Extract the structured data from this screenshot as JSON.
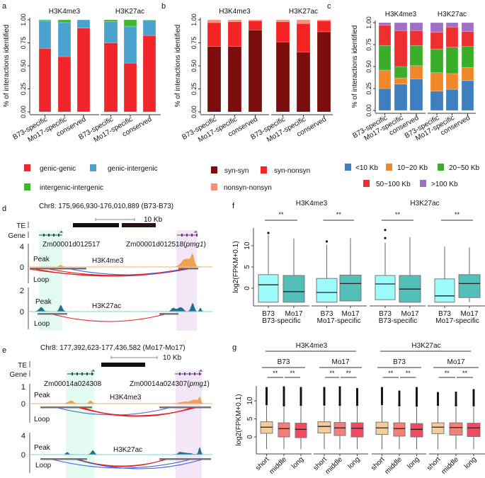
{
  "panels": {
    "a": "a",
    "b": "b",
    "c": "c",
    "d": "d",
    "e": "e",
    "f": "f",
    "g": "g"
  },
  "chart_data": [
    {
      "panel": "a",
      "type": "bar",
      "stacked": true,
      "ylabel": "% of interactions identified",
      "ylim": [
        0,
        1
      ],
      "yticks": [
        "0.00",
        "0.25",
        "0.50",
        "0.75",
        "1.00"
      ],
      "groups": [
        "H3K4me3",
        "H3K27ac"
      ],
      "categories": [
        "B73-specific",
        "Mo17-specific",
        "conserved"
      ],
      "series": [
        {
          "name": "genic-genic",
          "color": "#f0262a",
          "values": [
            [
              0.69,
              0.6,
              0.91
            ],
            [
              0.75,
              0.53,
              0.83
            ]
          ]
        },
        {
          "name": "genic-intergenic",
          "color": "#4aa3cf",
          "values": [
            [
              0.3,
              0.37,
              0.09
            ],
            [
              0.23,
              0.4,
              0.165
            ]
          ]
        },
        {
          "name": "intergenic-intergenic",
          "color": "#3db52e",
          "values": [
            [
              0.01,
              0.03,
              0.0
            ],
            [
              0.02,
              0.07,
              0.005
            ]
          ]
        }
      ],
      "legend": "bottom"
    },
    {
      "panel": "b",
      "type": "bar",
      "stacked": true,
      "ylabel": "% of interactions identified",
      "ylim": [
        0,
        1
      ],
      "yticks": [
        "0.00",
        "0.25",
        "0.50",
        "0.75",
        "1.00"
      ],
      "groups": [
        "H3K4me3",
        "H3K27ac"
      ],
      "categories": [
        "B73-specific",
        "Mo17-specific",
        "conserved"
      ],
      "series": [
        {
          "name": "syn-syn",
          "color": "#7b0d0d",
          "values": [
            [
              0.71,
              0.71,
              0.89
            ],
            [
              0.76,
              0.65,
              0.87
            ]
          ]
        },
        {
          "name": "syn-nonsyn",
          "color": "#f42424",
          "values": [
            [
              0.26,
              0.27,
              0.1
            ],
            [
              0.22,
              0.31,
              0.12
            ]
          ]
        },
        {
          "name": "nonsyn-nonsyn",
          "color": "#f2907a",
          "values": [
            [
              0.03,
              0.02,
              0.01
            ],
            [
              0.02,
              0.04,
              0.01
            ]
          ]
        }
      ],
      "legend": "bottom"
    },
    {
      "panel": "c",
      "type": "bar",
      "stacked": true,
      "ylabel": "% of interactions identified",
      "ylim": [
        0,
        1
      ],
      "yticks": [
        "0.00",
        "0.25",
        "0.50",
        "0.75",
        "1.00"
      ],
      "groups": [
        "H3K4me3",
        "H3K27ac"
      ],
      "categories": [
        "B73-specific",
        "Mo17-specific",
        "conserved"
      ],
      "series": [
        {
          "name": "<10 Kb",
          "color": "#3d7fbf",
          "values": [
            [
              0.25,
              0.3,
              0.36
            ],
            [
              0.22,
              0.24,
              0.34
            ]
          ]
        },
        {
          "name": "10~20 Kb",
          "color": "#f0882a",
          "values": [
            [
              0.21,
              0.07,
              0.15
            ],
            [
              0.21,
              0.18,
              0.15
            ]
          ]
        },
        {
          "name": "20~50 Kb",
          "color": "#3aae2a",
          "values": [
            [
              0.28,
              0.13,
              0.23
            ],
            [
              0.27,
              0.3,
              0.24
            ]
          ]
        },
        {
          "name": "50~100 Kb",
          "color": "#ee3030",
          "values": [
            [
              0.23,
              0.41,
              0.17
            ],
            [
              0.19,
              0.23,
              0.17
            ]
          ]
        },
        {
          "name": ">100 Kb",
          "color": "#a070c8",
          "values": [
            [
              0.03,
              0.09,
              0.09
            ],
            [
              0.11,
              0.05,
              0.1
            ]
          ]
        }
      ],
      "legend": "bottom"
    },
    {
      "panel": "f",
      "type": "box",
      "ylabel": "log2(FPKM+0.1)",
      "yticks": [
        "0",
        "5",
        "10"
      ],
      "headers": [
        "H3K4me3",
        "H3K27ac"
      ],
      "groups": [
        "B73-specific",
        "Mo17-specific",
        "B73-specific",
        "Mo17-specific"
      ],
      "categories": [
        "B73",
        "Mo17"
      ],
      "significance": "**",
      "colors": {
        "B73": "#9cfcfc",
        "Mo17": "#52bfb8"
      },
      "boxes": [
        [
          {
            "lo": -3.3,
            "q1": -3.3,
            "med": 0.8,
            "q3": 3.2,
            "hi": 12.5,
            "out": [
              13
            ]
          },
          {
            "lo": -3.3,
            "q1": -3.3,
            "med": -0.8,
            "q3": 3.0,
            "hi": 11.7,
            "out": []
          }
        ],
        [
          {
            "lo": -3.3,
            "q1": -3.3,
            "med": -1.0,
            "q3": 2.3,
            "hi": 10.2,
            "out": [
              11
            ]
          },
          {
            "lo": -3.0,
            "q1": -3.0,
            "med": 1.1,
            "q3": 3.1,
            "hi": 11.8,
            "out": []
          }
        ],
        [
          {
            "lo": -2.7,
            "q1": -2.7,
            "med": 1.0,
            "q3": 3.0,
            "hi": 10.7,
            "out": [
              11.8,
              13.7
            ]
          },
          {
            "lo": -3.3,
            "q1": -3.3,
            "med": -0.2,
            "q3": 3.0,
            "hi": 12.0,
            "out": []
          }
        ],
        [
          {
            "lo": -3.3,
            "q1": -3.3,
            "med": -1.8,
            "q3": 2.2,
            "hi": 9.8,
            "out": []
          },
          {
            "lo": -3.3,
            "q1": -2.2,
            "med": 1.1,
            "q3": 3.2,
            "hi": 9.6,
            "out": []
          }
        ]
      ]
    },
    {
      "panel": "g",
      "type": "box",
      "ylabel": "log2(FPKM+0.1)",
      "yticks": [
        "0",
        "5",
        "10"
      ],
      "headers": [
        "H3K4me3",
        "H3K27ac"
      ],
      "groups": [
        "B73",
        "Mo17",
        "B73",
        "Mo17"
      ],
      "categories": [
        "short",
        "middle",
        "long"
      ],
      "significance": "**",
      "colors": {
        "short": "#f5cc9c",
        "middle": "#f28078",
        "long": "#f24a60"
      },
      "boxes": [
        [
          {
            "lo": -3.4,
            "q1": 1.0,
            "med": 2.7,
            "q3": 4.2,
            "hi": 8.6,
            "out": [
              9,
              10,
              11,
              12,
              13.8
            ]
          },
          {
            "lo": -3.4,
            "q1": 0.0,
            "med": 2.3,
            "q3": 3.9,
            "hi": 8.3,
            "out": [
              8.8,
              10,
              11,
              12,
              14
            ]
          },
          {
            "lo": -3.4,
            "q1": -0.2,
            "med": 2.1,
            "q3": 3.8,
            "hi": 8.4,
            "out": [
              9,
              10,
              11,
              12,
              13.8
            ]
          }
        ],
        [
          {
            "lo": -3.4,
            "q1": 1.1,
            "med": 2.9,
            "q3": 4.2,
            "hi": 8.5,
            "out": [
              9,
              10,
              11,
              12,
              13.8
            ]
          },
          {
            "lo": -3.4,
            "q1": 0.4,
            "med": 2.5,
            "q3": 4.0,
            "hi": 8.4,
            "out": [
              8.9,
              10,
              11,
              12.5,
              14
            ]
          },
          {
            "lo": -3.4,
            "q1": 0.0,
            "med": 2.4,
            "q3": 3.9,
            "hi": 8.4,
            "out": [
              9,
              10,
              11,
              12,
              13.5
            ]
          }
        ],
        [
          {
            "lo": -3.4,
            "q1": 0.7,
            "med": 2.5,
            "q3": 4.1,
            "hi": 8.6,
            "out": [
              9,
              10,
              11.5,
              13.8
            ]
          },
          {
            "lo": -3.4,
            "q1": 0.2,
            "med": 2.3,
            "q3": 3.9,
            "hi": 8.3,
            "out": [
              8.8,
              10,
              11,
              12.8
            ]
          },
          {
            "lo": -3.4,
            "q1": 0.0,
            "med": 2.1,
            "q3": 3.7,
            "hi": 8.2,
            "out": [
              9,
              10,
              11,
              13.8
            ]
          }
        ],
        [
          {
            "lo": -3.4,
            "q1": 0.9,
            "med": 2.7,
            "q3": 3.9,
            "hi": 8.4,
            "out": [
              9,
              10,
              11,
              12.4
            ]
          },
          {
            "lo": -3.4,
            "q1": 0.5,
            "med": 2.6,
            "q3": 3.9,
            "hi": 8.3,
            "out": [
              8.8,
              10,
              11,
              12.5
            ]
          },
          {
            "lo": -3.4,
            "q1": 0.1,
            "med": 2.5,
            "q3": 3.8,
            "hi": 8.3,
            "out": [
              9,
              10,
              11,
              12,
              13.2
            ]
          }
        ]
      ]
    }
  ],
  "tracks": {
    "d": {
      "region": "Chr8: 175,966,930-176,010,889 (B73-B73)",
      "scale": "10 Kb",
      "te_label": "TE",
      "gene_label": "Gene",
      "gene1": "Zm00001d012517",
      "gene2": "Zm00001d012518(",
      "gene2_italic": "pmg1",
      "gene2_close": ")",
      "track1": {
        "mark": "H3K4me3",
        "ymax": "4",
        "ymin": "0",
        "peak": "Peak",
        "loop": "Loop",
        "color": "#f0a050"
      },
      "track2": {
        "mark": "H3K27ac",
        "ymax": "2",
        "ymin": "0",
        "peak": "Peak",
        "loop": "Loop",
        "color": "#20708a"
      }
    },
    "e": {
      "region": "Chr8: 177,392,623-177,436,582 (Mo17-Mo17)",
      "scale": "10 Kb",
      "te_label": "TE",
      "gene_label": "Gene",
      "gene1": "Zm00014a024308",
      "gene2": "Zm00014a024307(",
      "gene2_italic": "pmg1",
      "gene2_close": ")",
      "track1": {
        "mark": "H3K4me3",
        "ymax": "1",
        "ymin": "0",
        "peak": "Peak",
        "loop": "Loop",
        "color": "#f0a050"
      },
      "track2": {
        "mark": "H3K27ac",
        "ymax": "4",
        "ymin": "0",
        "peak": "Peak",
        "loop": "Loop",
        "color": "#20708a"
      }
    }
  }
}
